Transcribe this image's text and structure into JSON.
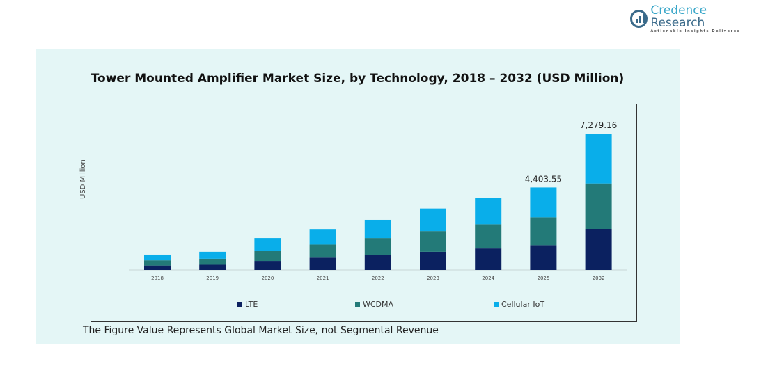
{
  "brand": {
    "name_part1": "Credence",
    "name_part2": " Research",
    "tagline": "Actionable Insights Delivered"
  },
  "footnote": "The Figure Value Represents Global Market Size, not Segmental Revenue",
  "chart_data": {
    "type": "bar",
    "stacked": true,
    "title": "Tower Mounted Amplifier Market Size, by Technology,  2018 – 2032 (USD Million)",
    "xlabel": "",
    "ylabel": "USD Million",
    "categories": [
      "2018",
      "2019",
      "2020",
      "2021",
      "2022",
      "2023",
      "2024",
      "2025",
      "2032"
    ],
    "series": [
      {
        "name": "LTE",
        "color": "#0b2160",
        "values": [
          236,
          278,
          481,
          658,
          802,
          970,
          1147,
          1325,
          2191
        ]
      },
      {
        "name": "WCDMA",
        "color": "#237a78",
        "values": [
          278,
          321,
          557,
          700,
          903,
          1105,
          1291,
          1485,
          2426
        ]
      },
      {
        "name": "Cellular IoT",
        "color": "#09aeea",
        "values": [
          304,
          371,
          667,
          827,
          970,
          1206,
          1409,
          1594,
          2662
        ]
      }
    ],
    "data_labels": {
      "2025": "4,403.55",
      "2032": "7,279.16"
    },
    "legend": "bottom",
    "grid": false
  }
}
